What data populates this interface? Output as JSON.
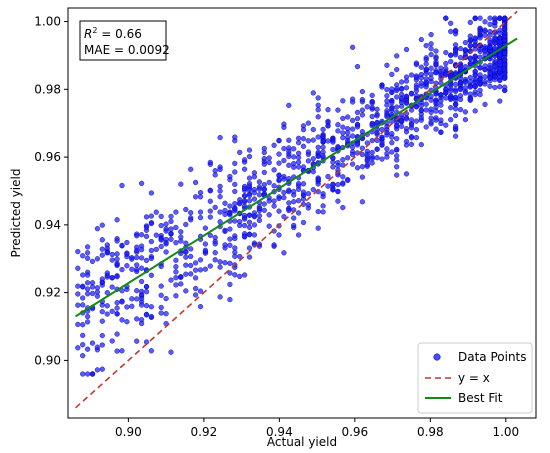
{
  "chart_data": {
    "type": "scatter",
    "xlabel": "Actual yield",
    "ylabel": "Predicted yield",
    "xlim": [
      0.884,
      1.008
    ],
    "ylim": [
      0.883,
      1.004
    ],
    "x_ticks": [
      "0.90",
      "0.92",
      "0.94",
      "0.96",
      "0.98",
      "1.00"
    ],
    "y_ticks": [
      "0.90",
      "0.92",
      "0.94",
      "0.96",
      "0.98",
      "1.00"
    ],
    "grid": false,
    "legend_position": "lower-right",
    "annotation": {
      "r2_label": "R",
      "r2_sup": "2",
      "r2_value": " = 0.66",
      "mae": "MAE = 0.0092"
    },
    "colors": {
      "points": "#1a1aff",
      "points_edge": "#0000aa",
      "identity": "#c0392b",
      "fit": "#138a13"
    },
    "series": [
      {
        "name": "Data Points",
        "kind": "scatter",
        "n_points": 1400,
        "x_range": [
          0.886,
          1.0
        ],
        "y_range": [
          0.896,
          1.001
        ],
        "note": "dense cloud of predicted vs actual yield points"
      },
      {
        "name": "y = x",
        "kind": "line",
        "x": [
          0.886,
          1.003
        ],
        "y": [
          0.886,
          1.003
        ]
      },
      {
        "name": "Best Fit",
        "kind": "line",
        "x": [
          0.886,
          1.003
        ],
        "y": [
          0.913,
          0.995
        ]
      }
    ]
  }
}
